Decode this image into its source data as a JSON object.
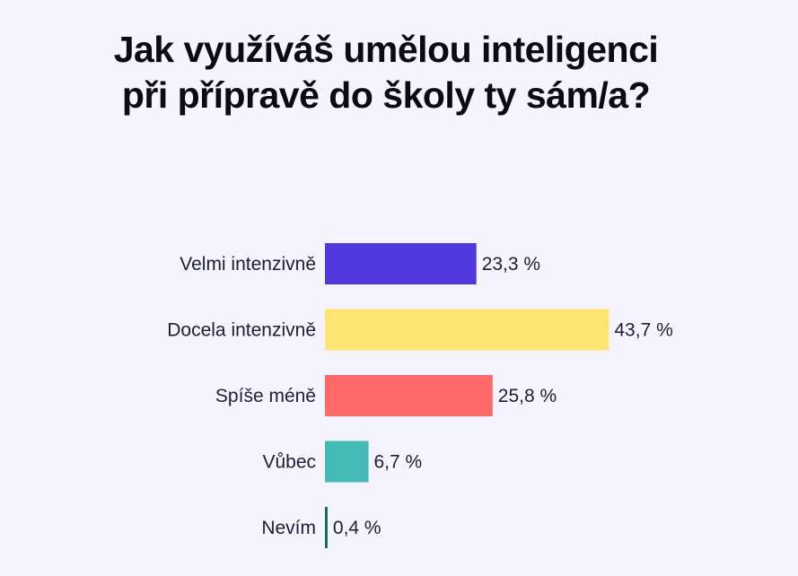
{
  "chart_data": {
    "type": "bar",
    "orientation": "horizontal",
    "title_lines": [
      "Jak využíváš umělou inteligenci",
      "při přípravě do školy ty sám/a?"
    ],
    "categories": [
      "Velmi intenzivně",
      "Docela intenzivně",
      "Spíše méně",
      "Vůbec",
      "Nevím"
    ],
    "values": [
      23.3,
      43.7,
      25.8,
      6.7,
      0.4
    ],
    "value_labels": [
      "23,3 %",
      "43,7 %",
      "25,8 %",
      "6,7 %",
      "0,4 %"
    ],
    "colors": [
      "#5038de",
      "#ffe571",
      "#ff6a69",
      "#43bab5",
      "#0e6a5a"
    ],
    "xlim": [
      0,
      100
    ],
    "grid": false,
    "legend": "none"
  }
}
